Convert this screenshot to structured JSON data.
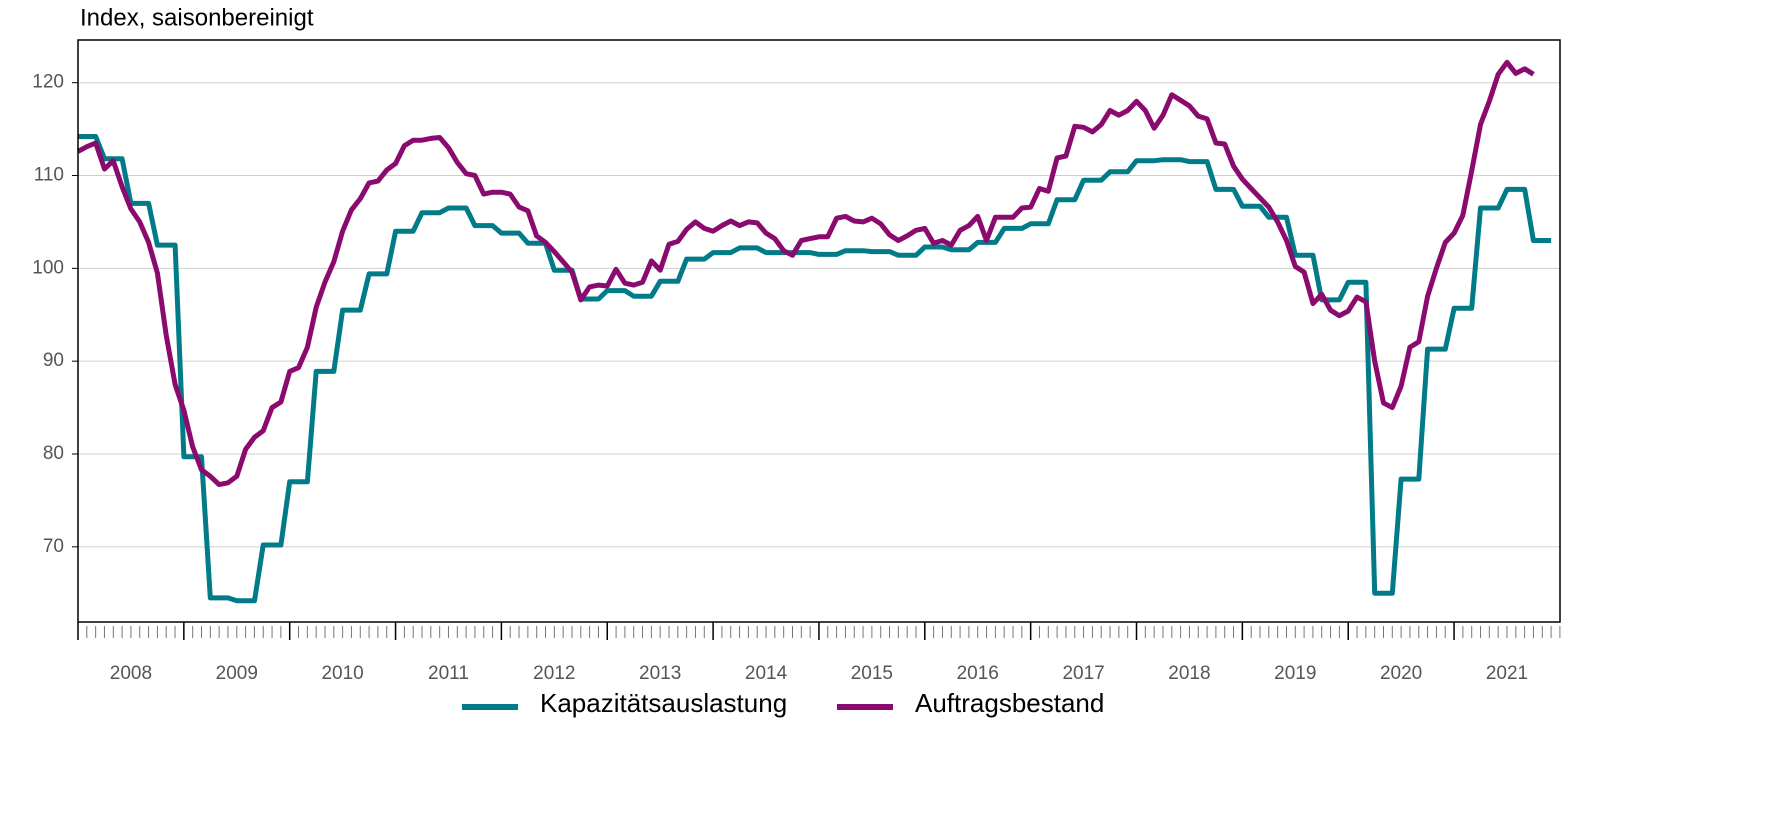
{
  "chart_data": {
    "type": "line",
    "subtitle": "Index, saisonbereinigt",
    "x": [
      2008,
      2008.083,
      2008.167,
      2008.25,
      2008.333,
      2008.417,
      2008.5,
      2008.583,
      2008.667,
      2008.75,
      2008.833,
      2008.917,
      2009,
      2009.083,
      2009.167,
      2009.25,
      2009.333,
      2009.417,
      2009.5,
      2009.583,
      2009.667,
      2009.75,
      2009.833,
      2009.917,
      2010,
      2010.083,
      2010.167,
      2010.25,
      2010.333,
      2010.417,
      2010.5,
      2010.583,
      2010.667,
      2010.75,
      2010.833,
      2010.917,
      2011,
      2011.083,
      2011.167,
      2011.25,
      2011.333,
      2011.417,
      2011.5,
      2011.583,
      2011.667,
      2011.75,
      2011.833,
      2011.917,
      2012,
      2012.083,
      2012.167,
      2012.25,
      2012.333,
      2012.417,
      2012.5,
      2012.583,
      2012.667,
      2012.75,
      2012.833,
      2012.917,
      2013,
      2013.083,
      2013.167,
      2013.25,
      2013.333,
      2013.417,
      2013.5,
      2013.583,
      2013.667,
      2013.75,
      2013.833,
      2013.917,
      2014,
      2014.083,
      2014.167,
      2014.25,
      2014.333,
      2014.417,
      2014.5,
      2014.583,
      2014.667,
      2014.75,
      2014.833,
      2014.917,
      2015,
      2015.083,
      2015.167,
      2015.25,
      2015.333,
      2015.417,
      2015.5,
      2015.583,
      2015.667,
      2015.75,
      2015.833,
      2015.917,
      2016,
      2016.083,
      2016.167,
      2016.25,
      2016.333,
      2016.417,
      2016.5,
      2016.583,
      2016.667,
      2016.75,
      2016.833,
      2016.917,
      2017,
      2017.083,
      2017.167,
      2017.25,
      2017.333,
      2017.417,
      2017.5,
      2017.583,
      2017.667,
      2017.75,
      2017.833,
      2017.917,
      2018,
      2018.083,
      2018.167,
      2018.25,
      2018.333,
      2018.417,
      2018.5,
      2018.583,
      2018.667,
      2018.75,
      2018.833,
      2018.917,
      2019,
      2019.083,
      2019.167,
      2019.25,
      2019.333,
      2019.417,
      2019.5,
      2019.583,
      2019.667,
      2019.75,
      2019.833,
      2019.917,
      2020,
      2020.083,
      2020.167,
      2020.25,
      2020.333,
      2020.417,
      2020.5,
      2020.583,
      2020.667,
      2020.75,
      2020.833,
      2020.917,
      2021,
      2021.083,
      2021.167,
      2021.25,
      2021.333,
      2021.417,
      2021.5,
      2021.583,
      2021.667,
      2021.75,
      2021.833,
      2021.917
    ],
    "series": [
      {
        "name": "Kapazitätsauslastung",
        "color": "#007b87",
        "values": [
          114.2,
          114.2,
          114.2,
          111.8,
          111.8,
          111.8,
          107,
          107,
          107,
          102.5,
          102.5,
          102.5,
          79.7,
          79.7,
          79.7,
          64.5,
          64.5,
          64.5,
          64.2,
          64.2,
          64.2,
          70.2,
          70.2,
          70.2,
          77,
          77,
          77,
          88.9,
          88.9,
          88.9,
          95.5,
          95.5,
          95.5,
          99.4,
          99.4,
          99.4,
          104,
          104,
          104,
          106,
          106,
          106,
          106.5,
          106.5,
          106.5,
          104.6,
          104.6,
          104.6,
          103.8,
          103.8,
          103.8,
          102.7,
          102.7,
          102.7,
          99.8,
          99.8,
          99.8,
          96.7,
          96.7,
          96.7,
          97.6,
          97.6,
          97.6,
          97,
          97,
          97,
          98.6,
          98.6,
          98.6,
          101,
          101,
          101,
          101.7,
          101.7,
          101.7,
          102.2,
          102.2,
          102.2,
          101.7,
          101.7,
          101.7,
          101.7,
          101.7,
          101.7,
          101.5,
          101.5,
          101.5,
          101.9,
          101.9,
          101.9,
          101.8,
          101.8,
          101.8,
          101.4,
          101.4,
          101.4,
          102.3,
          102.3,
          102.3,
          102,
          102,
          102,
          102.8,
          102.8,
          102.8,
          104.3,
          104.3,
          104.3,
          104.8,
          104.8,
          104.8,
          107.4,
          107.4,
          107.4,
          109.5,
          109.5,
          109.5,
          110.4,
          110.4,
          110.4,
          111.6,
          111.6,
          111.6,
          111.7,
          111.7,
          111.7,
          111.5,
          111.5,
          111.5,
          108.5,
          108.5,
          108.5,
          106.7,
          106.7,
          106.7,
          105.5,
          105.5,
          105.5,
          101.4,
          101.4,
          101.4,
          96.6,
          96.6,
          96.6,
          98.5,
          98.5,
          98.5,
          65,
          65,
          65,
          77.3,
          77.3,
          77.3,
          91.3,
          91.3,
          91.3,
          95.7,
          95.7,
          95.7,
          106.5,
          106.5,
          106.5,
          108.5,
          108.5,
          108.5,
          103,
          103,
          103
        ]
      },
      {
        "name": "Auftragsbestand",
        "color": "#8b0a6e",
        "values": [
          112.6,
          113.1,
          113.5,
          110.7,
          111.6,
          108.8,
          106.4,
          105,
          102.8,
          99.5,
          92.8,
          87.5,
          84.7,
          80.8,
          78.3,
          77.6,
          76.7,
          76.9,
          77.6,
          80.5,
          81.8,
          82.5,
          85,
          85.6,
          88.9,
          89.3,
          91.5,
          95.8,
          98.5,
          100.7,
          104,
          106.3,
          107.5,
          109.2,
          109.4,
          110.6,
          111.3,
          113.2,
          113.8,
          113.8,
          114,
          114.1,
          113,
          111.4,
          110.2,
          110,
          108,
          108.2,
          108.2,
          108,
          106.6,
          106.2,
          103.5,
          102.8,
          101.8,
          100.7,
          99.6,
          96.6,
          98,
          98.2,
          98.1,
          99.9,
          98.4,
          98.2,
          98.5,
          100.8,
          99.8,
          102.6,
          102.9,
          104.2,
          105,
          104.3,
          104,
          104.6,
          105.1,
          104.6,
          105,
          104.9,
          103.8,
          103.2,
          101.9,
          101.4,
          103,
          103.2,
          103.4,
          103.4,
          105.4,
          105.6,
          105.1,
          105,
          105.4,
          104.8,
          103.6,
          103,
          103.5,
          104.1,
          104.3,
          102.7,
          103,
          102.5,
          104.1,
          104.6,
          105.6,
          103,
          105.5,
          105.5,
          105.5,
          106.5,
          106.6,
          108.6,
          108.3,
          111.9,
          112.1,
          115.3,
          115.2,
          114.7,
          115.5,
          117,
          116.5,
          117,
          118,
          117,
          115.1,
          116.5,
          118.7,
          118.1,
          117.5,
          116.4,
          116.1,
          113.5,
          113.4,
          111,
          109.6,
          108.6,
          107.6,
          106.6,
          105,
          103,
          100.2,
          99.6,
          96.2,
          97.2,
          95.5,
          94.9,
          95.4,
          96.9,
          96.4,
          90,
          85.5,
          85,
          87.3,
          91.5,
          92.1,
          97,
          100,
          102.8,
          103.8,
          105.7,
          110.5,
          115.5,
          118,
          120.9,
          122.2,
          121,
          121.5,
          120.9,
          null,
          null
        ]
      }
    ],
    "xlim": [
      2008,
      2021.917
    ],
    "xticks": [
      {
        "value": 2008.5,
        "label": "2008"
      },
      {
        "value": 2009.5,
        "label": "2009"
      },
      {
        "value": 2010.5,
        "label": "2010"
      },
      {
        "value": 2011.5,
        "label": "2011"
      },
      {
        "value": 2012.5,
        "label": "2012"
      },
      {
        "value": 2013.5,
        "label": "2013"
      },
      {
        "value": 2014.5,
        "label": "2014"
      },
      {
        "value": 2015.5,
        "label": "2015"
      },
      {
        "value": 2016.5,
        "label": "2016"
      },
      {
        "value": 2017.5,
        "label": "2017"
      },
      {
        "value": 2018.5,
        "label": "2018"
      },
      {
        "value": 2019.5,
        "label": "2019"
      },
      {
        "value": 2020.5,
        "label": "2020"
      },
      {
        "value": 2021.5,
        "label": "2021"
      }
    ],
    "ylim": [
      61.9,
      124.6
    ],
    "yticks": [
      70,
      80,
      90,
      100,
      110,
      120
    ],
    "grid": true,
    "legend": "bottom"
  }
}
